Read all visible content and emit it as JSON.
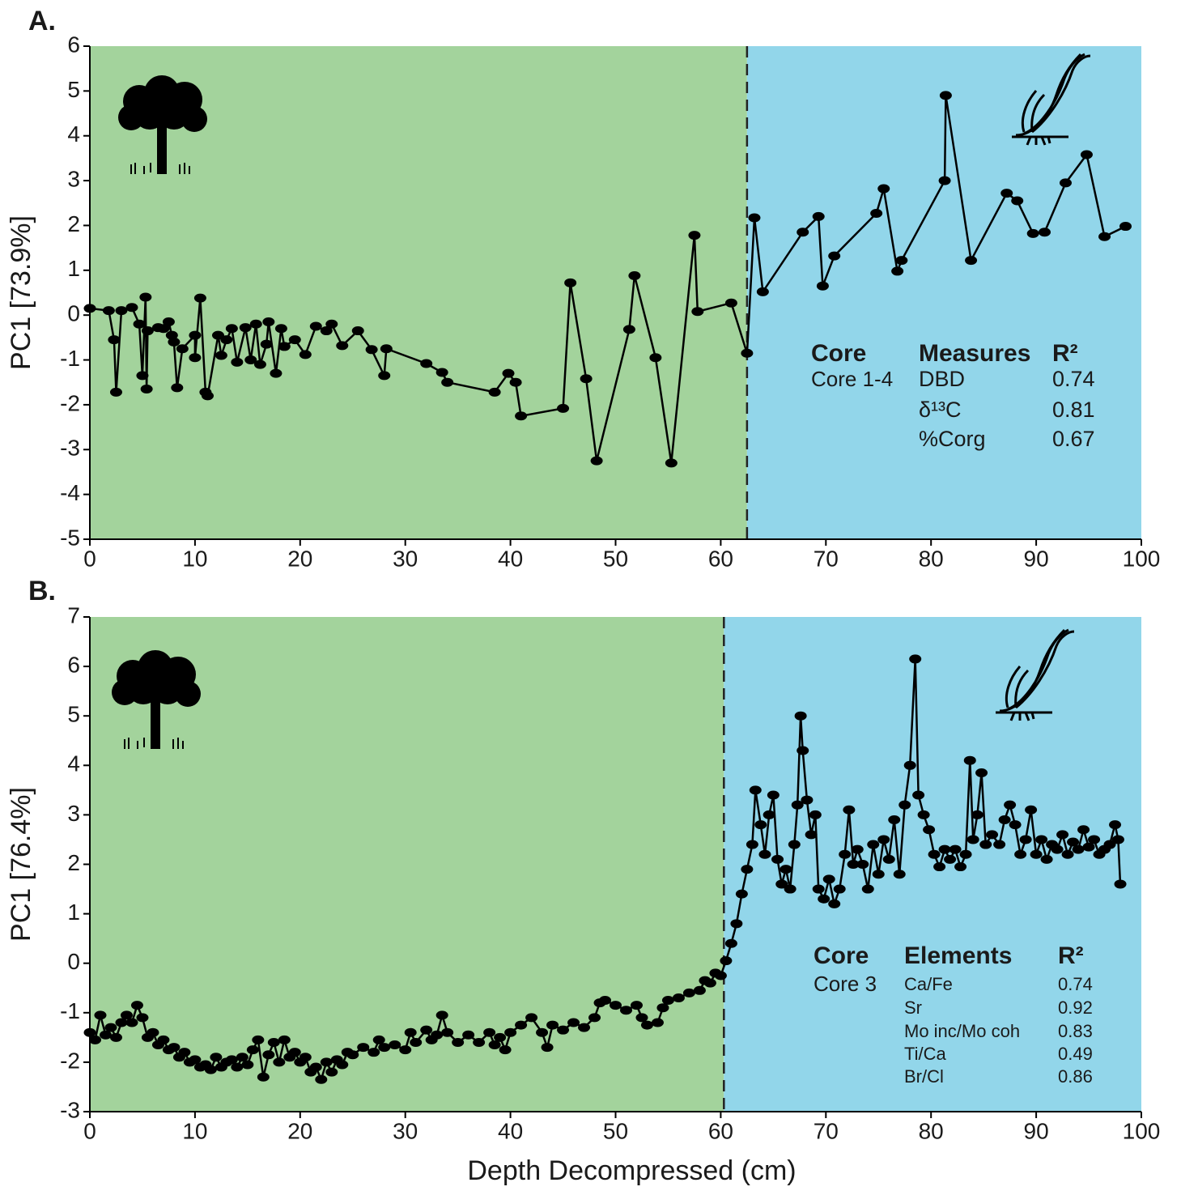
{
  "chart_data": [
    {
      "type": "line",
      "panel_label": "A.",
      "ylabel": "PC1 [73.9%]",
      "xlim": [
        0,
        100
      ],
      "ylim": [
        -5,
        6
      ],
      "xticks": [
        0,
        10,
        20,
        30,
        40,
        50,
        60,
        70,
        80,
        90,
        100
      ],
      "yticks": [
        -5,
        -4,
        -3,
        -2,
        -1,
        0,
        1,
        2,
        3,
        4,
        5,
        6
      ],
      "boundary": 62.5,
      "left_color": "#a3d39c",
      "right_color": "#92d6ea",
      "color": "#000000",
      "x": [
        0,
        1.8,
        2.3,
        2.5,
        3,
        4,
        4.7,
        5,
        5.3,
        5.4,
        5.5,
        6.5,
        7,
        7.5,
        7.8,
        8,
        8.3,
        8.8,
        10,
        10,
        10.5,
        11,
        11.2,
        12.2,
        12.5,
        13,
        13.5,
        14,
        14.8,
        15.3,
        15.8,
        16.2,
        16.8,
        17,
        17.7,
        18.2,
        18.5,
        19.5,
        20.5,
        21.5,
        22.5,
        23,
        24,
        25.5,
        26.8,
        28,
        28.2,
        32,
        33.5,
        34,
        38.5,
        39.8,
        40.5,
        41,
        45,
        45.7,
        47.2,
        48.2,
        51.3,
        51.8,
        53.8,
        55.3,
        57.5,
        57.8,
        61,
        62.5,
        63.2,
        64,
        67.8,
        69.3,
        69.7,
        70.8,
        74.8,
        75.5,
        76.8,
        77.2,
        81.3,
        81.4,
        83.8,
        87.2,
        88.2,
        89.7,
        90.8,
        92.8,
        94.8,
        96.5,
        98.5
      ],
      "values": [
        0.15,
        0.1,
        -0.55,
        -1.72,
        0.1,
        0.17,
        -0.2,
        -1.35,
        0.4,
        -1.65,
        -0.35,
        -0.28,
        -0.3,
        -0.15,
        -0.45,
        -0.6,
        -1.62,
        -0.75,
        -0.45,
        -0.95,
        0.38,
        -1.72,
        -1.8,
        -0.45,
        -0.9,
        -0.55,
        -0.3,
        -1.05,
        -0.28,
        -1.0,
        -0.2,
        -1.1,
        -0.65,
        -0.15,
        -1.3,
        -0.3,
        -0.7,
        -0.55,
        -0.88,
        -0.25,
        -0.35,
        -0.2,
        -0.68,
        -0.35,
        -0.77,
        -1.35,
        -0.75,
        -1.08,
        -1.28,
        -1.5,
        -1.72,
        -1.3,
        -1.5,
        -2.25,
        -2.08,
        0.72,
        -1.42,
        -3.25,
        -0.32,
        0.88,
        -0.95,
        -3.3,
        1.78,
        0.08,
        0.27,
        -0.85,
        2.17,
        0.52,
        1.85,
        2.2,
        0.65,
        1.32,
        2.27,
        2.82,
        0.98,
        1.22,
        3.0,
        4.9,
        1.22,
        2.72,
        2.55,
        1.82,
        1.85,
        2.95,
        3.58,
        1.75,
        1.98
      ],
      "table": {
        "headers": [
          "Core",
          "Measures",
          "R²"
        ],
        "core": "Core 1-4",
        "rows": [
          [
            "DBD",
            0.74
          ],
          [
            "δ¹³C",
            0.81
          ],
          [
            "%Corg",
            0.67
          ]
        ]
      }
    },
    {
      "type": "line",
      "panel_label": "B.",
      "ylabel": "PC1 [76.4%]",
      "xlabel": "Depth Decompressed (cm)",
      "xlim": [
        0,
        100
      ],
      "ylim": [
        -3,
        7
      ],
      "xticks": [
        0,
        10,
        20,
        30,
        40,
        50,
        60,
        70,
        80,
        90,
        100
      ],
      "yticks": [
        -3,
        -2,
        -1,
        0,
        1,
        2,
        3,
        4,
        5,
        6,
        7
      ],
      "boundary": 60.3,
      "left_color": "#a3d39c",
      "right_color": "#92d6ea",
      "color": "#000000",
      "x": [
        0,
        0.5,
        1,
        1.5,
        2,
        2.5,
        3,
        3.5,
        4,
        4.5,
        5,
        5.5,
        6,
        6.5,
        7,
        7.5,
        8,
        8.5,
        9,
        9.5,
        10,
        10.5,
        11,
        11.5,
        12,
        12.5,
        13,
        13.5,
        14,
        14.5,
        15,
        15.5,
        16,
        16.5,
        17,
        17.5,
        18,
        18.5,
        19,
        19.5,
        20,
        20.5,
        21,
        21.5,
        22,
        22.5,
        23,
        23.5,
        24,
        24.5,
        25,
        26,
        27,
        27.5,
        28,
        29,
        30,
        30.5,
        31,
        32,
        32.5,
        33,
        33.5,
        34,
        35,
        36,
        37,
        38,
        38.5,
        39,
        39.5,
        40,
        41,
        42,
        43,
        43.5,
        44,
        45,
        46,
        47,
        48,
        48.5,
        49,
        50,
        51,
        52,
        52.5,
        53,
        54,
        54.5,
        55,
        56,
        57,
        58,
        58.5,
        59,
        59.5,
        60,
        60.5,
        61,
        61.5,
        62,
        62.5,
        63,
        63.3,
        63.8,
        64.2,
        64.6,
        65,
        65.4,
        65.8,
        66.2,
        66.6,
        67,
        67.3,
        67.6,
        67.8,
        68.2,
        68.6,
        69,
        69.3,
        69.8,
        70.3,
        70.8,
        71.3,
        71.8,
        72.2,
        72.6,
        73,
        73.5,
        74,
        74.5,
        75,
        75.5,
        76,
        76.5,
        77,
        77.5,
        78,
        78.5,
        78.8,
        79.3,
        79.8,
        80.3,
        80.8,
        81.3,
        81.8,
        82.3,
        82.8,
        83.3,
        83.7,
        84,
        84.4,
        84.8,
        85.2,
        85.8,
        86.5,
        87,
        87.5,
        88,
        88.5,
        89,
        89.5,
        90,
        90.5,
        91,
        91.5,
        92,
        92.5,
        93,
        93.5,
        94,
        94.5,
        95,
        95.5,
        96,
        96.5,
        97,
        97.5,
        97.8,
        98
      ],
      "values": [
        -1.4,
        -1.55,
        -1.05,
        -1.45,
        -1.3,
        -1.5,
        -1.2,
        -1.05,
        -1.2,
        -0.85,
        -1.1,
        -1.5,
        -1.4,
        -1.65,
        -1.55,
        -1.75,
        -1.7,
        -1.9,
        -1.8,
        -2.0,
        -1.95,
        -2.1,
        -2.05,
        -2.15,
        -1.9,
        -2.1,
        -2.0,
        -1.95,
        -2.1,
        -1.9,
        -2.05,
        -1.75,
        -1.55,
        -2.3,
        -1.85,
        -1.6,
        -2.0,
        -1.55,
        -1.9,
        -1.8,
        -2.0,
        -1.9,
        -2.2,
        -2.1,
        -2.35,
        -2.0,
        -2.2,
        -1.95,
        -2.05,
        -1.8,
        -1.85,
        -1.7,
        -1.8,
        -1.55,
        -1.7,
        -1.65,
        -1.75,
        -1.4,
        -1.6,
        -1.35,
        -1.55,
        -1.45,
        -1.05,
        -1.4,
        -1.6,
        -1.45,
        -1.6,
        -1.4,
        -1.65,
        -1.5,
        -1.75,
        -1.4,
        -1.25,
        -1.1,
        -1.4,
        -1.7,
        -1.25,
        -1.35,
        -1.2,
        -1.3,
        -1.1,
        -0.8,
        -0.75,
        -0.85,
        -0.95,
        -0.85,
        -1.1,
        -1.25,
        -1.2,
        -0.9,
        -0.75,
        -0.7,
        -0.6,
        -0.55,
        -0.35,
        -0.4,
        -0.2,
        -0.25,
        0.05,
        0.4,
        0.8,
        1.4,
        1.9,
        2.4,
        3.5,
        2.8,
        2.2,
        3.0,
        3.4,
        2.1,
        1.6,
        1.9,
        1.5,
        2.4,
        3.2,
        5.0,
        4.3,
        3.3,
        2.6,
        3.0,
        1.5,
        1.3,
        1.7,
        1.2,
        1.5,
        2.2,
        3.1,
        2.0,
        2.3,
        2.0,
        1.5,
        2.4,
        1.8,
        2.5,
        2.1,
        2.9,
        1.8,
        3.2,
        4.0,
        6.15,
        3.4,
        3.0,
        2.7,
        2.2,
        1.95,
        2.3,
        2.1,
        2.3,
        1.95,
        2.2,
        4.1,
        2.5,
        3.0,
        3.85,
        2.4,
        2.6,
        2.4,
        2.9,
        3.2,
        2.8,
        2.2,
        2.5,
        3.1,
        2.2,
        2.5,
        2.1,
        2.4,
        2.3,
        2.6,
        2.2,
        2.45,
        2.3,
        2.7,
        2.35,
        2.5,
        2.2,
        2.3,
        2.4,
        2.8,
        2.5,
        1.6
      ],
      "table": {
        "headers": [
          "Core",
          "Elements",
          "R²"
        ],
        "core": "Core 3",
        "rows": [
          [
            "Ca/Fe",
            0.74
          ],
          [
            "Sr",
            0.92
          ],
          [
            "Mo inc/Mo coh",
            0.83
          ],
          [
            "Ti/Ca",
            0.49
          ],
          [
            "Br/Cl",
            0.86
          ]
        ]
      }
    }
  ]
}
